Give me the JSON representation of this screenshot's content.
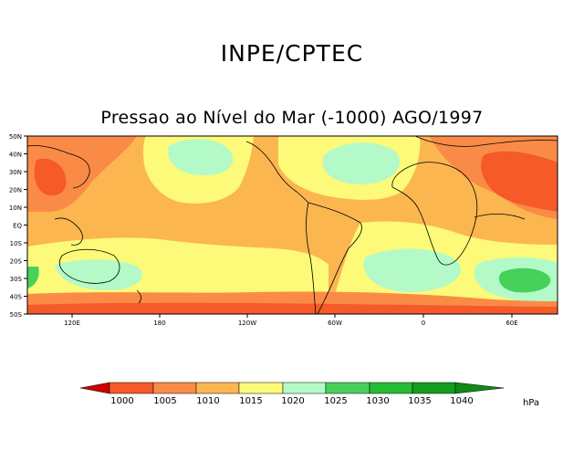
{
  "header": {
    "title": "INPE/CPTEC",
    "subtitle": "Pressao ao Nível do Mar (-1000) AGO/1997"
  },
  "map": {
    "lat_labels": [
      "50N",
      "40N",
      "30N",
      "20N",
      "10N",
      "EQ",
      "10S",
      "20S",
      "30S",
      "40S",
      "50S"
    ],
    "lon_labels": [
      "120E",
      "180",
      "120W",
      "60W",
      "0",
      "60E"
    ]
  },
  "colorbar": {
    "values": [
      "1000",
      "1005",
      "1010",
      "1015",
      "1020",
      "1025",
      "1030",
      "1035",
      "1040"
    ],
    "unit": "hPa",
    "colors": [
      "#cc0000",
      "#f55a28",
      "#fa8b46",
      "#fcb650",
      "#fcfa78",
      "#b4fac8",
      "#46d25a",
      "#26bc36",
      "#129e1e",
      "#118a17"
    ]
  }
}
